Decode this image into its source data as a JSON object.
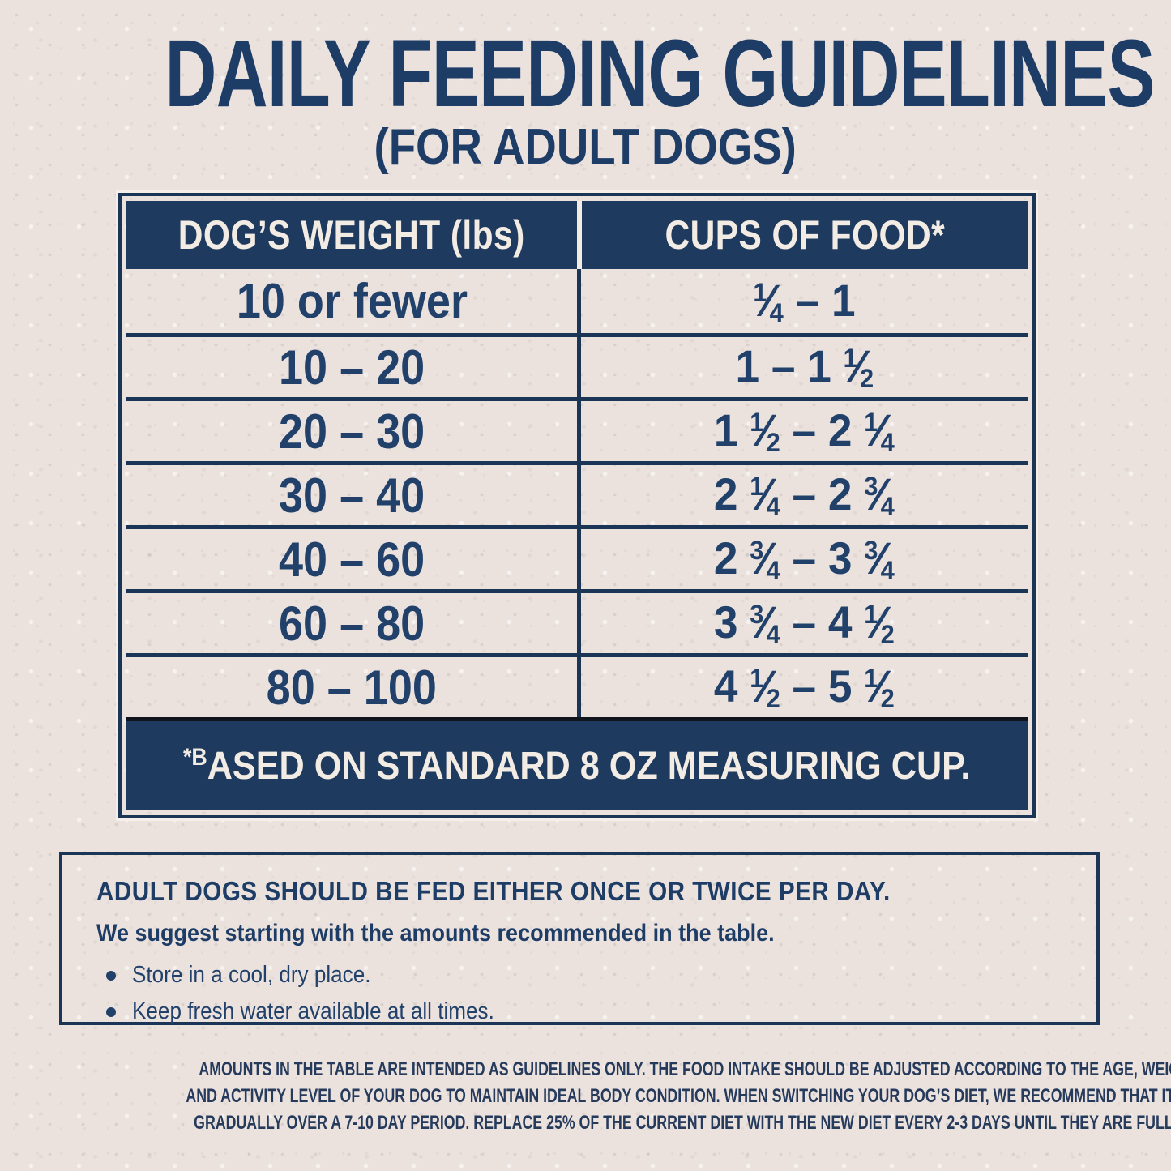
{
  "page": {
    "title": "DAILY FEEDING GUIDELINES",
    "subtitle": "(FOR ADULT DOGS)"
  },
  "table": {
    "columns": [
      "DOG’S WEIGHT (lbs)",
      "CUPS OF FOOD*"
    ],
    "rows": [
      {
        "weight": "10 or fewer",
        "cups": "1/4 – 1"
      },
      {
        "weight": "10 – 20",
        "cups": "1 – 1 1/2"
      },
      {
        "weight": "20 – 30",
        "cups": "1 1/2 – 2 1/4"
      },
      {
        "weight": "30 – 40",
        "cups": "2 1/4 – 2 3/4"
      },
      {
        "weight": "40 – 60",
        "cups": "2 3/4 – 3 3/4"
      },
      {
        "weight": "60 – 80",
        "cups": "3 3/4 – 4 1/2"
      },
      {
        "weight": "80 – 100",
        "cups": "4 1/2 – 5 1/2"
      }
    ],
    "footnote": "*BASED ON STANDARD 8 OZ MEASURING CUP."
  },
  "info_box": {
    "heading": "ADULT DOGS SHOULD BE FED EITHER ONCE OR TWICE PER DAY.",
    "subheading": "We suggest starting with the amounts recommended in the table.",
    "bullets": [
      "Store in a cool, dry place.",
      "Keep fresh water available at all times."
    ]
  },
  "disclaimer": {
    "lines": [
      "AMOUNTS IN THE TABLE ARE INTENDED AS GUIDELINES ONLY. THE FOOD INTAKE SHOULD BE ADJUSTED ACCORDING TO THE AGE, WEIGHT, BREED, CLIMATE,",
      "AND ACTIVITY LEVEL OF YOUR DOG TO MAINTAIN IDEAL BODY CONDITION. WHEN SWITCHING YOUR DOG’S DIET, WE RECOMMEND THAT IT BE DONE",
      "GRADUALLY OVER A 7-10 DAY PERIOD. REPLACE 25% OF THE CURRENT DIET WITH THE NEW DIET EVERY 2-3 DAYS UNTIL THEY ARE FULLY TRANSITIONED."
    ]
  },
  "colors": {
    "navy_fill": "#1e3a5e",
    "navy_text": "#1e3d66",
    "line_navy": "#1b3557",
    "footer_top_line": "#10151d",
    "off_white": "#f3ece4",
    "background": "#ebe2de"
  }
}
